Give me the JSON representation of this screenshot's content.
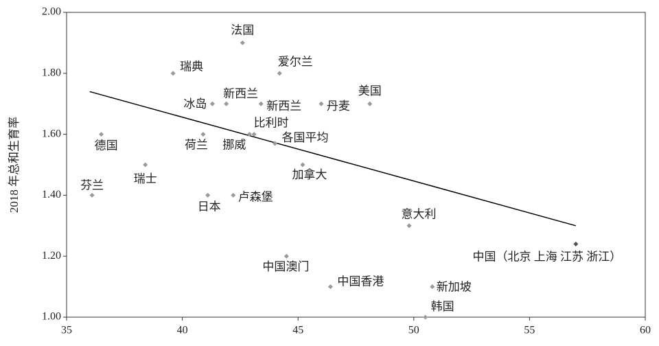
{
  "chart_data": {
    "type": "scatter",
    "y_label": "2018 年总和生育率",
    "xlim": [
      35,
      60
    ],
    "xticks": [
      35,
      40,
      45,
      50,
      55,
      60
    ],
    "ylim": [
      1.0,
      2.0
    ],
    "yticks": [
      {
        "value": 1.0,
        "label": "1.00"
      },
      {
        "value": 1.2,
        "label": "1.20"
      },
      {
        "value": 1.4,
        "label": "1.40"
      },
      {
        "value": 1.6,
        "label": "1.60"
      },
      {
        "value": 1.8,
        "label": "1.80"
      },
      {
        "value": 2.0,
        "label": "2.00"
      }
    ],
    "color": "#9a9a9a",
    "highlight_color": "#555555",
    "labels": [
      "法国",
      "瑞典",
      "爱尔兰",
      "冰岛",
      "新西兰",
      "新西兰",
      "丹麦",
      "美国",
      "德国",
      "荷兰",
      "挪威",
      "比利时",
      "各国平均",
      "瑞士",
      "加拿大",
      "芬兰",
      "日本",
      "卢森堡",
      "意大利",
      "中国（北京 上海 江苏 浙江）",
      "中国澳门",
      "中国香港",
      "新加坡",
      "韩国"
    ],
    "x": [
      42.6,
      39.6,
      44.2,
      41.3,
      41.9,
      43.4,
      46.0,
      48.1,
      36.5,
      40.9,
      42.9,
      43.1,
      44.0,
      38.4,
      45.2,
      36.1,
      41.1,
      42.2,
      49.8,
      57.0,
      44.5,
      46.4,
      50.8,
      50.5
    ],
    "values": [
      1.9,
      1.8,
      1.8,
      1.7,
      1.7,
      1.7,
      1.7,
      1.7,
      1.6,
      1.6,
      1.6,
      1.6,
      1.57,
      1.5,
      1.5,
      1.4,
      1.4,
      1.4,
      1.3,
      1.24,
      1.2,
      1.1,
      1.1,
      1.0
    ],
    "trendline": {
      "color": "#000000",
      "x": [
        36,
        57
      ],
      "y": [
        1.74,
        1.3
      ]
    }
  }
}
